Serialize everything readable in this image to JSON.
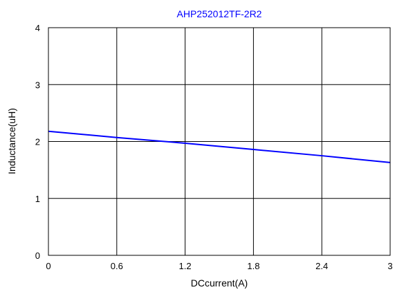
{
  "chart_data": {
    "type": "line",
    "title": "AHP252012TF-2R2",
    "xlabel": "DCcurrent(A)",
    "ylabel": "Inductance(uH)",
    "xlim": [
      0,
      3
    ],
    "ylim": [
      0,
      4
    ],
    "x_ticks": [
      "0",
      "0.6",
      "1.2",
      "1.8",
      "2.4",
      "3"
    ],
    "y_ticks": [
      "0",
      "1",
      "2",
      "3",
      "4"
    ],
    "grid": true,
    "series": [
      {
        "color": "#0000ff",
        "x": [
          0,
          0.6,
          1.2,
          1.8,
          2.4,
          3.0
        ],
        "y": [
          2.18,
          2.07,
          1.97,
          1.86,
          1.75,
          1.63
        ]
      }
    ],
    "colors": {
      "title": "#0000ff",
      "axis": "#000000",
      "grid": "#000000",
      "background": "#ffffff"
    }
  }
}
